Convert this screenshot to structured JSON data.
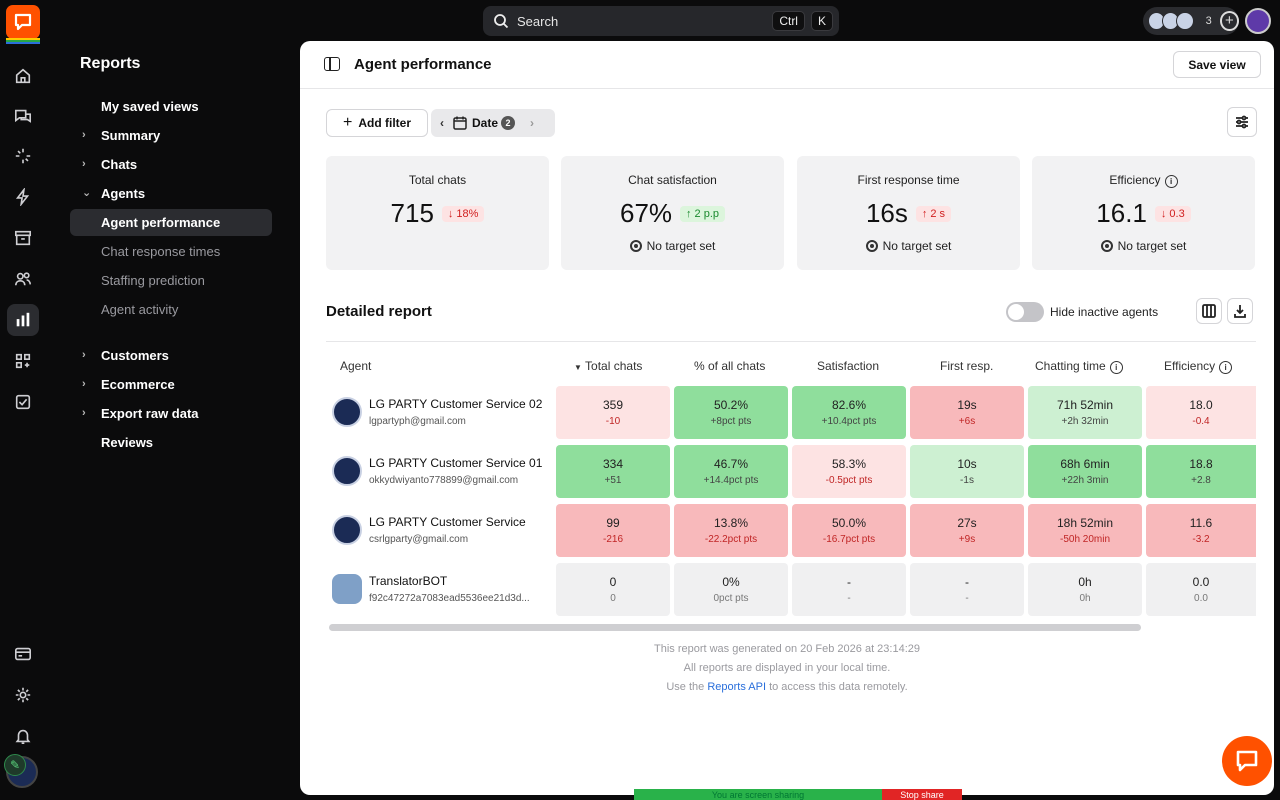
{
  "topbar": {
    "search_placeholder": "Search",
    "shortcut_mod": "Ctrl",
    "shortcut_key": "K",
    "agents_online_count": "3"
  },
  "colors": {
    "brand": "#ff5100",
    "rail_bg": "#0b0b0c",
    "green_strong": "#8fde9c",
    "green_light": "#cdf0d2",
    "red_strong": "#f8b9bb",
    "red_light": "#fde3e3"
  },
  "rail_icons": [
    "home-icon",
    "chats-icon",
    "sparkle-icon",
    "lightning-icon",
    "archive-icon",
    "team-icon",
    "reports-icon",
    "apps-icon",
    "tasks-icon",
    "billing-icon",
    "settings-icon",
    "bell-icon"
  ],
  "nav": {
    "title": "Reports",
    "items": [
      {
        "label": "My saved views"
      },
      {
        "label": "Summary"
      },
      {
        "label": "Chats"
      },
      {
        "label": "Agents"
      },
      {
        "label": "Agent performance"
      },
      {
        "label": "Chat response times"
      },
      {
        "label": "Staffing prediction"
      },
      {
        "label": "Agent activity"
      },
      {
        "label": "Customers"
      },
      {
        "label": "Ecommerce"
      },
      {
        "label": "Export raw data"
      },
      {
        "label": "Reviews"
      }
    ]
  },
  "main": {
    "title": "Agent performance",
    "save_view": "Save view",
    "add_filter": "Add filter",
    "date_label": "Date",
    "date_badge": "2"
  },
  "cards": [
    {
      "title": "Total chats",
      "value": "715",
      "delta": "18%",
      "delta_dir": "down",
      "foot": ""
    },
    {
      "title": "Chat satisfaction",
      "value": "67%",
      "delta": "2 p.p",
      "delta_dir": "up",
      "foot": "No target set"
    },
    {
      "title": "First response time",
      "value": "16s",
      "delta": "2 s",
      "delta_dir": "down",
      "foot": "No target set"
    },
    {
      "title": "Efficiency",
      "value": "16.1",
      "delta": "0.3",
      "delta_dir": "down",
      "foot": "No target set"
    }
  ],
  "report": {
    "title": "Detailed report",
    "toggle_label": "Hide inactive agents",
    "columns": [
      "Agent",
      "Total chats",
      "% of all chats",
      "Satisfaction",
      "First resp.",
      "Chatting time",
      "Efficiency"
    ],
    "rows": [
      {
        "name": "LG PARTY Customer Service 02",
        "email": "lgpartyph@gmail.com",
        "cells": [
          {
            "v": "359",
            "d": "-10"
          },
          {
            "v": "50.2%",
            "d": "+8pct pts"
          },
          {
            "v": "82.6%",
            "d": "+10.4pct pts"
          },
          {
            "v": "19s",
            "d": "+6s"
          },
          {
            "v": "71h 52min",
            "d": "+2h 32min"
          },
          {
            "v": "18.0",
            "d": "-0.4"
          }
        ]
      },
      {
        "name": "LG PARTY Customer Service 01",
        "email": "okkydwiyanto778899@gmail.com",
        "cells": [
          {
            "v": "334",
            "d": "+51"
          },
          {
            "v": "46.7%",
            "d": "+14.4pct pts"
          },
          {
            "v": "58.3%",
            "d": "-0.5pct pts"
          },
          {
            "v": "10s",
            "d": "-1s"
          },
          {
            "v": "68h 6min",
            "d": "+22h 3min"
          },
          {
            "v": "18.8",
            "d": "+2.8"
          }
        ]
      },
      {
        "name": "LG PARTY Customer Service",
        "email": "csrlgparty@gmail.com",
        "cells": [
          {
            "v": "99",
            "d": "-216"
          },
          {
            "v": "13.8%",
            "d": "-22.2pct pts"
          },
          {
            "v": "50.0%",
            "d": "-16.7pct pts"
          },
          {
            "v": "27s",
            "d": "+9s"
          },
          {
            "v": "18h 52min",
            "d": "-50h 20min"
          },
          {
            "v": "11.6",
            "d": "-3.2"
          }
        ]
      },
      {
        "name": "TranslatorBOT",
        "email": "f92c47272a7083ead5536ee21d3d...",
        "cells": [
          {
            "v": "0",
            "d": "0"
          },
          {
            "v": "0%",
            "d": "0pct pts"
          },
          {
            "v": "-",
            "d": "-"
          },
          {
            "v": "-",
            "d": "-"
          },
          {
            "v": "0h",
            "d": "0h"
          },
          {
            "v": "0.0",
            "d": "0.0"
          }
        ]
      }
    ],
    "footnote_1": "This report was generated on 20 Feb 2026 at 23:14:29",
    "footnote_2": "All reports are displayed in your local time.",
    "footnote_3_pre": "Use the",
    "footnote_3_link": "Reports API",
    "footnote_3_post": "to access this data remotely."
  },
  "screen_share": {
    "text": "You are screen sharing",
    "stop": "Stop share"
  }
}
